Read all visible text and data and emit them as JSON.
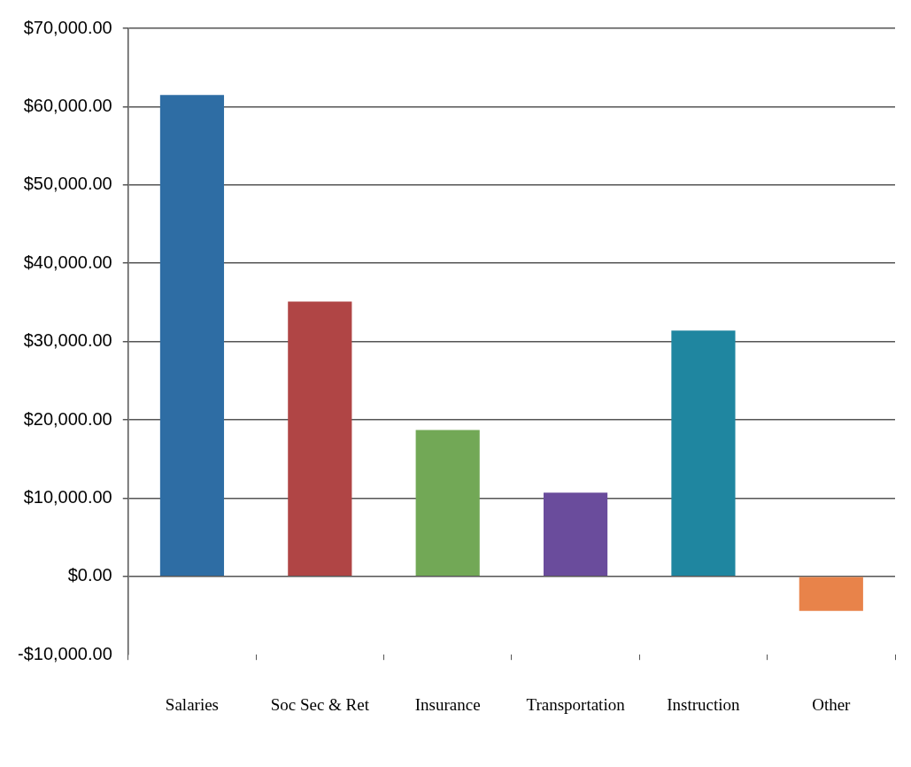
{
  "chart_data": {
    "type": "bar",
    "categories": [
      "Salaries",
      "Soc Sec & Ret",
      "Insurance",
      "Transportation",
      "Instruction",
      "Other"
    ],
    "values": [
      61500,
      35100,
      18700,
      10700,
      31400,
      -4400
    ],
    "colors": [
      "#2e6da4",
      "#b04545",
      "#72a856",
      "#6a4c9c",
      "#1f86a0",
      "#e8834a"
    ],
    "ylim": [
      -10000,
      70000
    ],
    "yticks": [
      {
        "value": -10000,
        "label": "-$10,000.00"
      },
      {
        "value": 0,
        "label": "$0.00"
      },
      {
        "value": 10000,
        "label": "$10,000.00"
      },
      {
        "value": 20000,
        "label": "$20,000.00"
      },
      {
        "value": 30000,
        "label": "$30,000.00"
      },
      {
        "value": 40000,
        "label": "$40,000.00"
      },
      {
        "value": 50000,
        "label": "$50,000.00"
      },
      {
        "value": 60000,
        "label": "$60,000.00"
      },
      {
        "value": 70000,
        "label": "$70,000.00"
      }
    ],
    "grid": "y",
    "legend": false
  }
}
